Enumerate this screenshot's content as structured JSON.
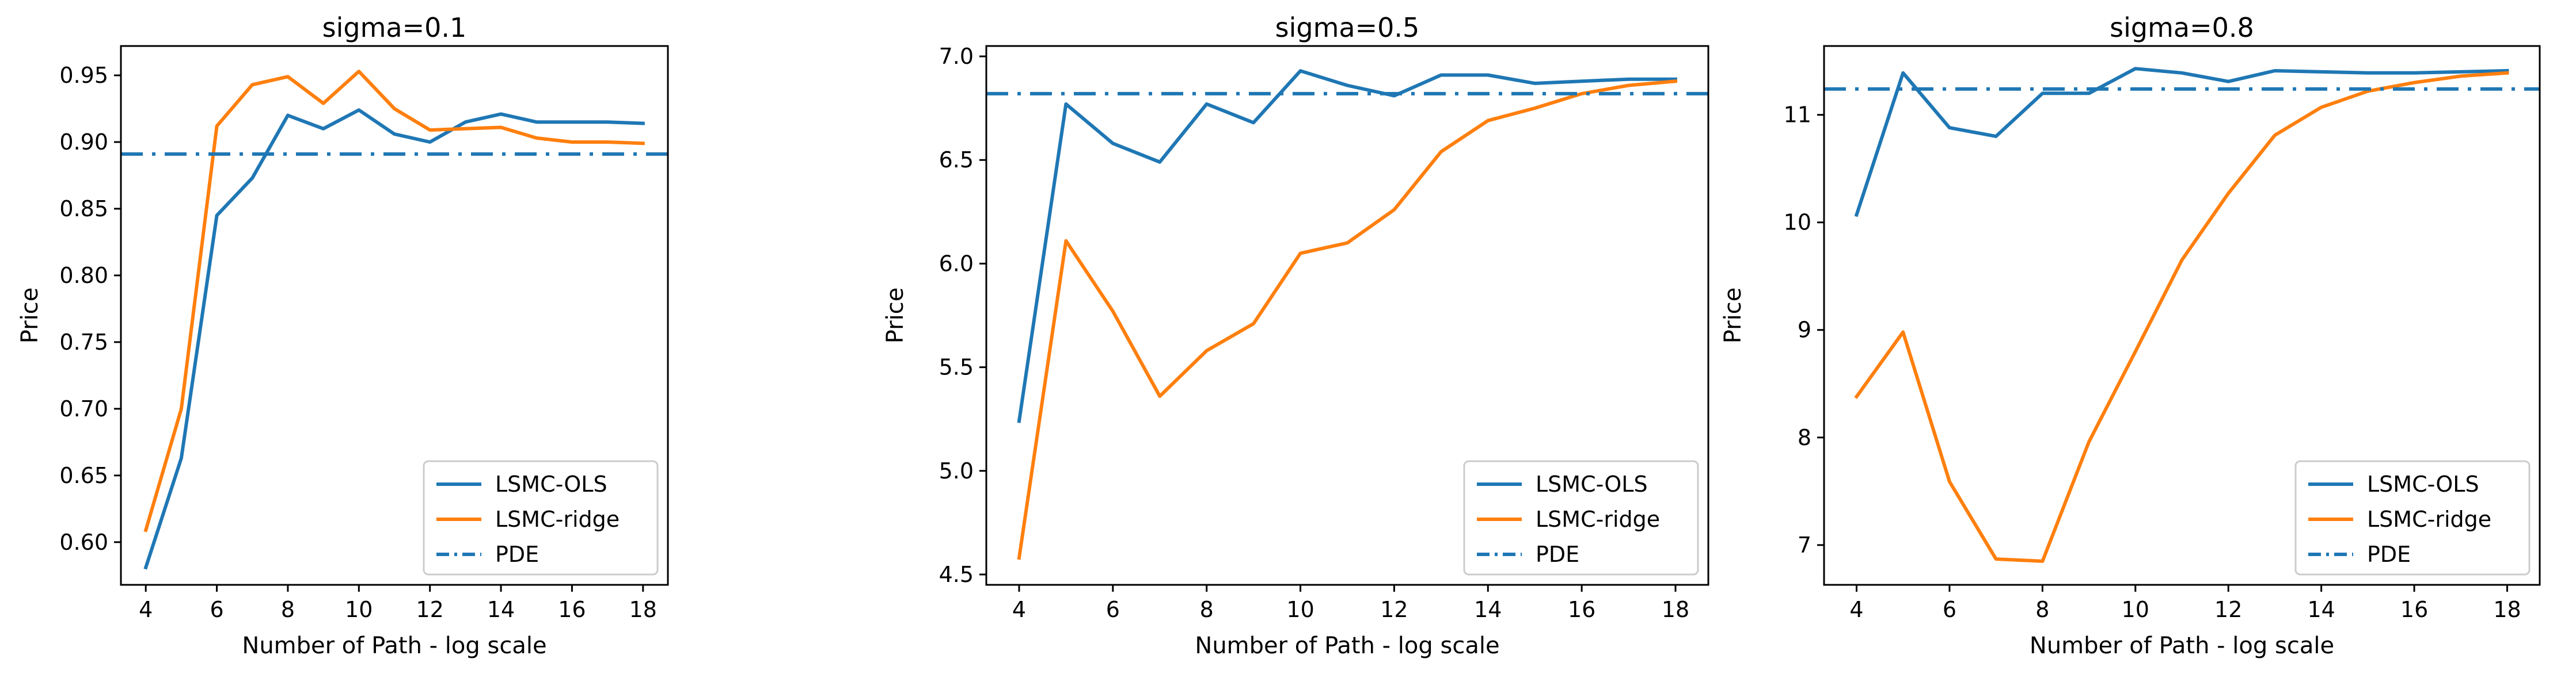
{
  "chart_data": [
    {
      "type": "line",
      "title": "sigma=0.1",
      "xlabel": "Number of Path - log scale",
      "ylabel": "Price",
      "xlim": [
        3.3,
        18.7
      ],
      "ylim": [
        0.568,
        0.972
      ],
      "xticks": [
        4,
        6,
        8,
        10,
        12,
        14,
        16,
        18
      ],
      "yticks": [
        0.6,
        0.65,
        0.7,
        0.75,
        0.8,
        0.85,
        0.9,
        0.95
      ],
      "ytick_decimals": 2,
      "legend_position": "lower-right",
      "series": [
        {
          "name": "LSMC-OLS",
          "color": "#1f77b4",
          "style": "solid",
          "x": [
            4,
            5,
            6,
            7,
            8,
            9,
            10,
            11,
            12,
            13,
            14,
            15,
            16,
            17,
            18
          ],
          "y": [
            0.581,
            0.663,
            0.845,
            0.873,
            0.92,
            0.91,
            0.924,
            0.906,
            0.9,
            0.915,
            0.921,
            0.915,
            0.915,
            0.915,
            0.914
          ]
        },
        {
          "name": "LSMC-ridge",
          "color": "#ff7f0e",
          "style": "solid",
          "x": [
            4,
            5,
            6,
            7,
            8,
            9,
            10,
            11,
            12,
            13,
            14,
            15,
            16,
            17,
            18
          ],
          "y": [
            0.609,
            0.7,
            0.912,
            0.943,
            0.949,
            0.929,
            0.953,
            0.925,
            0.909,
            0.91,
            0.911,
            0.903,
            0.9,
            0.9,
            0.899
          ]
        },
        {
          "name": "PDE",
          "color": "#1f77b4",
          "style": "dashdot",
          "hline": 0.891
        }
      ]
    },
    {
      "type": "line",
      "title": "sigma=0.5",
      "xlabel": "Number of Path - log scale",
      "ylabel": "Price",
      "xlim": [
        3.3,
        18.7
      ],
      "ylim": [
        4.45,
        7.05
      ],
      "xticks": [
        4,
        6,
        8,
        10,
        12,
        14,
        16,
        18
      ],
      "yticks": [
        4.5,
        5.0,
        5.5,
        6.0,
        6.5,
        7.0
      ],
      "ytick_decimals": 1,
      "legend_position": "lower-right",
      "series": [
        {
          "name": "LSMC-OLS",
          "color": "#1f77b4",
          "style": "solid",
          "x": [
            4,
            5,
            6,
            7,
            8,
            9,
            10,
            11,
            12,
            13,
            14,
            15,
            16,
            17,
            18
          ],
          "y": [
            5.24,
            6.77,
            6.58,
            6.49,
            6.77,
            6.68,
            6.93,
            6.86,
            6.81,
            6.91,
            6.91,
            6.87,
            6.88,
            6.89,
            6.89
          ]
        },
        {
          "name": "LSMC-ridge",
          "color": "#ff7f0e",
          "style": "solid",
          "x": [
            4,
            5,
            6,
            7,
            8,
            9,
            10,
            11,
            12,
            13,
            14,
            15,
            16,
            17,
            18
          ],
          "y": [
            4.58,
            6.11,
            5.77,
            5.36,
            5.58,
            5.71,
            6.05,
            6.1,
            6.26,
            6.54,
            6.69,
            6.75,
            6.82,
            6.86,
            6.88
          ]
        },
        {
          "name": "PDE",
          "color": "#1f77b4",
          "style": "dashdot",
          "hline": 6.82
        }
      ]
    },
    {
      "type": "line",
      "title": "sigma=0.8",
      "xlabel": "Number of Path - log scale",
      "ylabel": "Price",
      "xlim": [
        3.3,
        18.7
      ],
      "ylim": [
        6.63,
        11.64
      ],
      "xticks": [
        4,
        6,
        8,
        10,
        12,
        14,
        16,
        18
      ],
      "yticks": [
        7,
        8,
        9,
        10,
        11
      ],
      "ytick_decimals": 0,
      "legend_position": "lower-right",
      "series": [
        {
          "name": "LSMC-OLS",
          "color": "#1f77b4",
          "style": "solid",
          "x": [
            4,
            5,
            6,
            7,
            8,
            9,
            10,
            11,
            12,
            13,
            14,
            15,
            16,
            17,
            18
          ],
          "y": [
            10.07,
            11.39,
            10.88,
            10.8,
            11.2,
            11.2,
            11.43,
            11.39,
            11.31,
            11.41,
            11.4,
            11.39,
            11.39,
            11.4,
            11.41
          ]
        },
        {
          "name": "LSMC-ridge",
          "color": "#ff7f0e",
          "style": "solid",
          "x": [
            4,
            5,
            6,
            7,
            8,
            9,
            10,
            11,
            12,
            13,
            14,
            15,
            16,
            17,
            18
          ],
          "y": [
            8.38,
            8.98,
            7.59,
            6.87,
            6.85,
            7.96,
            8.8,
            9.65,
            10.27,
            10.81,
            11.07,
            11.22,
            11.3,
            11.36,
            11.39
          ]
        },
        {
          "name": "PDE",
          "color": "#1f77b4",
          "style": "dashdot",
          "hline": 11.24
        }
      ]
    }
  ]
}
